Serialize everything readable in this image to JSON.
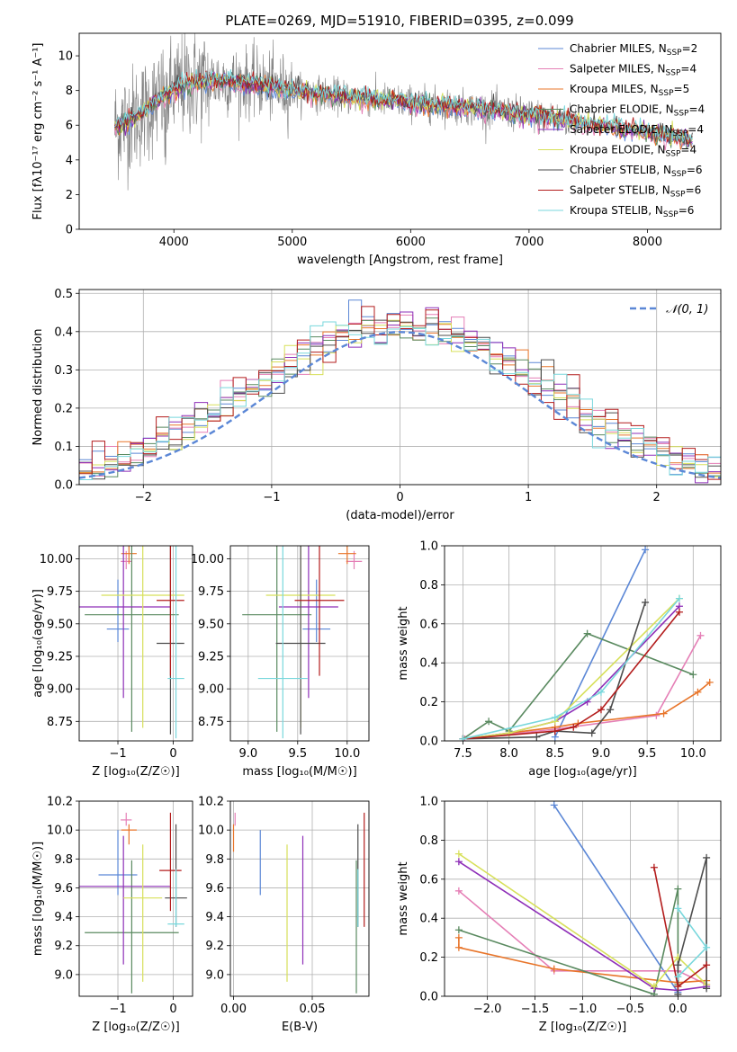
{
  "figure": {
    "title": "PLATE=0269, MJD=51910, FIBERID=0395, z=0.099"
  },
  "colors": {
    "Chabrier MILES": "#5b87d6",
    "Salpeter MILES": "#e57fb6",
    "Kroupa MILES": "#e8752a",
    "Chabrier ELODIE": "#5a8a60",
    "Salpeter ELODIE": "#8e2fb8",
    "Kroupa ELODIE": "#d7e05a",
    "Chabrier STELIB": "#4d4d4d",
    "Salpeter STELIB": "#b31c1c",
    "Kroupa STELIB": "#78d7dc"
  },
  "chart_data": [
    {
      "id": "spectrum",
      "type": "line",
      "xlabel": "wavelength [Angstrom, rest frame]",
      "ylabel": "Flux [fλ10⁻¹⁷ erg cm⁻² s⁻¹ A⁻¹]",
      "xlim": [
        3200,
        8620
      ],
      "ylim": [
        0,
        11.3
      ],
      "xticks": [
        4000,
        5000,
        6000,
        7000,
        8000
      ],
      "yticks": [
        0,
        2,
        4,
        6,
        8,
        10
      ],
      "grid": false,
      "legend_position": "top-right",
      "data_color": "#808080",
      "data_x_range": [
        3500,
        7420
      ],
      "model_x_range": [
        3500,
        8380
      ],
      "continuum_points": [
        [
          3500,
          5.9
        ],
        [
          3700,
          6.6
        ],
        [
          3900,
          7.6
        ],
        [
          4100,
          8.4
        ],
        [
          4400,
          8.6
        ],
        [
          4700,
          8.4
        ],
        [
          5000,
          8.0
        ],
        [
          5500,
          7.6
        ],
        [
          6000,
          7.3
        ],
        [
          6500,
          7.0
        ],
        [
          7000,
          6.6
        ],
        [
          7500,
          6.1
        ],
        [
          8000,
          5.6
        ],
        [
          8380,
          5.1
        ]
      ],
      "legend": [
        {
          "name": "Chabrier MILES",
          "label": "Chabrier MILES, N",
          "sub": "SSP",
          "value": "=2"
        },
        {
          "name": "Salpeter MILES",
          "label": "Salpeter MILES, N",
          "sub": "SSP",
          "value": "=4"
        },
        {
          "name": "Kroupa MILES",
          "label": "Kroupa MILES, N",
          "sub": "SSP",
          "value": "=5"
        },
        {
          "name": "Chabrier ELODIE",
          "label": "Chabrier ELODIE, N",
          "sub": "SSP",
          "value": "=4"
        },
        {
          "name": "Salpeter ELODIE",
          "label": "Salpeter ELODIE, N",
          "sub": "SSP",
          "value": "=4"
        },
        {
          "name": "Kroupa ELODIE",
          "label": "Kroupa ELODIE, N",
          "sub": "SSP",
          "value": "=4"
        },
        {
          "name": "Chabrier STELIB",
          "label": "Chabrier STELIB, N",
          "sub": "SSP",
          "value": "=6"
        },
        {
          "name": "Salpeter STELIB",
          "label": "Salpeter STELIB, N",
          "sub": "SSP",
          "value": "=6"
        },
        {
          "name": "Kroupa STELIB",
          "label": "Kroupa STELIB, N",
          "sub": "SSP",
          "value": "=6"
        }
      ]
    },
    {
      "id": "residuals",
      "type": "line",
      "xlabel": "(data-model)/error",
      "ylabel": "Normed distribution",
      "xlim": [
        -2.5,
        2.5
      ],
      "ylim": [
        0,
        0.51
      ],
      "xticks": [
        -2,
        -1,
        0,
        1,
        2
      ],
      "yticks": [
        0.0,
        0.1,
        0.2,
        0.3,
        0.4,
        0.5
      ],
      "grid": true,
      "legend_position": "top-right",
      "bin_width": 0.1,
      "gaussian": {
        "name": "𝒩(0, 1)",
        "color": "#5b87d6",
        "mean": 0,
        "sigma": 1
      }
    },
    {
      "id": "age-vs-Z",
      "type": "scatter",
      "xlabel": "Z [log₁₀(Z/Z☉)]",
      "ylabel": "age  [log₁₀(age/yr)]",
      "xlim": [
        -1.7,
        0.35
      ],
      "ylim": [
        8.6,
        10.1
      ],
      "xticks": [
        -1,
        0
      ],
      "yticks": [
        8.75,
        9.0,
        9.25,
        9.5,
        9.75,
        10.0
      ],
      "grid": true,
      "points": [
        {
          "model": "Chabrier MILES",
          "x": -1.0,
          "xerr": 0.2,
          "y": 9.46,
          "yerr": [
            0.1,
            0.38
          ]
        },
        {
          "model": "Salpeter MILES",
          "x": -0.85,
          "xerr": 0.1,
          "y": 9.98,
          "yerr": [
            0.06,
            0.08
          ]
        },
        {
          "model": "Kroupa MILES",
          "x": -0.8,
          "xerr": 0.14,
          "y": 10.04,
          "yerr": [
            0.08,
            0.06
          ]
        },
        {
          "model": "Chabrier ELODIE",
          "x": -0.75,
          "xerr": 0.85,
          "y": 9.57,
          "yerr": [
            0.9,
            0.55
          ]
        },
        {
          "model": "Salpeter ELODIE",
          "x": -0.9,
          "xerr": 0.85,
          "y": 9.63,
          "yerr": [
            0.7,
            0.48
          ]
        },
        {
          "model": "Kroupa ELODIE",
          "x": -0.55,
          "xerr": 0.75,
          "y": 9.72,
          "yerr": [
            1.02,
            0.38
          ]
        },
        {
          "model": "Chabrier STELIB",
          "x": -0.05,
          "xerr": 0.25,
          "y": 9.35,
          "yerr": [
            0.7,
            0.76
          ]
        },
        {
          "model": "Salpeter STELIB",
          "x": -0.05,
          "xerr": 0.25,
          "y": 9.68,
          "yerr": [
            0.58,
            0.43
          ]
        },
        {
          "model": "Kroupa STELIB",
          "x": 0.05,
          "xerr": 0.15,
          "y": 9.08,
          "yerr": [
            0.46,
            1.02
          ]
        }
      ]
    },
    {
      "id": "age-vs-mass",
      "type": "scatter",
      "xlabel": "mass [log₁₀(M/M☉)]",
      "ylabel": "",
      "xlim": [
        8.82,
        10.22
      ],
      "ylim": [
        8.6,
        10.1
      ],
      "xticks": [
        9.0,
        9.5,
        10.0
      ],
      "yticks": [
        8.75,
        9.0,
        9.25,
        9.5,
        9.75,
        10.0
      ],
      "grid": true,
      "points": [
        {
          "model": "Chabrier MILES",
          "x": 9.69,
          "xerr": 0.14,
          "y": 9.46,
          "yerr": [
            0.1,
            0.38
          ]
        },
        {
          "model": "Salpeter MILES",
          "x": 10.07,
          "xerr": 0.08,
          "y": 9.98,
          "yerr": [
            0.06,
            0.08
          ]
        },
        {
          "model": "Kroupa MILES",
          "x": 10.0,
          "xerr": 0.09,
          "y": 10.04,
          "yerr": [
            0.08,
            0.06
          ]
        },
        {
          "model": "Chabrier ELODIE",
          "x": 9.29,
          "xerr": 0.35,
          "y": 9.57,
          "yerr": [
            0.9,
            0.55
          ]
        },
        {
          "model": "Salpeter ELODIE",
          "x": 9.61,
          "xerr": 0.3,
          "y": 9.63,
          "yerr": [
            0.7,
            0.48
          ]
        },
        {
          "model": "Kroupa ELODIE",
          "x": 9.53,
          "xerr": 0.35,
          "y": 9.72,
          "yerr": [
            1.02,
            0.38
          ]
        },
        {
          "model": "Chabrier STELIB",
          "x": 9.53,
          "xerr": 0.25,
          "y": 9.35,
          "yerr": [
            0.7,
            0.76
          ]
        },
        {
          "model": "Salpeter STELIB",
          "x": 9.72,
          "xerr": 0.25,
          "y": 9.68,
          "yerr": [
            0.58,
            0.43
          ]
        },
        {
          "model": "Kroupa STELIB",
          "x": 9.35,
          "xerr": 0.25,
          "y": 9.08,
          "yerr": [
            0.46,
            1.02
          ]
        }
      ]
    },
    {
      "id": "mass-vs-Z",
      "type": "scatter",
      "xlabel": "Z [log₁₀(Z/Z☉)]",
      "ylabel": "mass [log₁₀(M/M☉)]",
      "xlim": [
        -1.7,
        0.35
      ],
      "ylim": [
        8.85,
        10.2
      ],
      "xticks": [
        -1,
        0
      ],
      "yticks": [
        9.0,
        9.2,
        9.4,
        9.6,
        9.8,
        10.0,
        10.2
      ],
      "grid": true,
      "points": [
        {
          "model": "Chabrier MILES",
          "x": -1.0,
          "xerr": 0.35,
          "y": 9.69,
          "yerr": [
            0.14,
            0.31
          ]
        },
        {
          "model": "Salpeter MILES",
          "x": -0.85,
          "xerr": 0.1,
          "y": 10.07,
          "yerr": [
            0.04,
            0.05
          ]
        },
        {
          "model": "Kroupa MILES",
          "x": -0.8,
          "xerr": 0.14,
          "y": 10.0,
          "yerr": [
            0.1,
            0.04
          ]
        },
        {
          "model": "Chabrier ELODIE",
          "x": -0.75,
          "xerr": 0.85,
          "y": 9.29,
          "yerr": [
            0.42,
            0.5
          ]
        },
        {
          "model": "Salpeter ELODIE",
          "x": -0.9,
          "xerr": 0.85,
          "y": 9.61,
          "yerr": [
            0.54,
            0.35
          ]
        },
        {
          "model": "Kroupa ELODIE",
          "x": -0.55,
          "xerr": 0.35,
          "y": 9.53,
          "yerr": [
            0.58,
            0.37
          ]
        },
        {
          "model": "Chabrier STELIB",
          "x": 0.05,
          "xerr": 0.2,
          "y": 9.53,
          "yerr": [
            0.2,
            0.51
          ]
        },
        {
          "model": "Salpeter STELIB",
          "x": -0.05,
          "xerr": 0.2,
          "y": 9.72,
          "yerr": [
            0.28,
            0.4
          ]
        },
        {
          "model": "Kroupa STELIB",
          "x": 0.05,
          "xerr": 0.15,
          "y": 9.35,
          "yerr": [
            0.02,
            0.38
          ]
        }
      ]
    },
    {
      "id": "mass-vs-EBV",
      "type": "scatter",
      "xlabel": "E(B-V)",
      "ylabel": "",
      "xlim": [
        -0.002,
        0.086
      ],
      "ylim": [
        8.85,
        10.2
      ],
      "xticks": [
        0.0,
        0.05
      ],
      "yticks": [
        9.0,
        9.2,
        9.4,
        9.6,
        9.8,
        10.0,
        10.2
      ],
      "grid": true,
      "points": [
        {
          "model": "Chabrier MILES",
          "x": 0.017,
          "y": 9.69,
          "yerr": [
            0.14,
            0.31
          ]
        },
        {
          "model": "Salpeter MILES",
          "x": 0.001,
          "y": 10.07,
          "yerr": [
            0.04,
            0.05
          ]
        },
        {
          "model": "Kroupa MILES",
          "x": 0.0,
          "y": 10.0,
          "yerr": [
            0.15,
            0.04
          ]
        },
        {
          "model": "Chabrier ELODIE",
          "x": 0.078,
          "y": 9.29,
          "yerr": [
            0.42,
            0.5
          ]
        },
        {
          "model": "Salpeter ELODIE",
          "x": 0.044,
          "y": 9.61,
          "yerr": [
            0.54,
            0.35
          ]
        },
        {
          "model": "Kroupa ELODIE",
          "x": 0.034,
          "y": 9.53,
          "yerr": [
            0.58,
            0.37
          ]
        },
        {
          "model": "Chabrier STELIB",
          "x": 0.079,
          "y": 9.53,
          "yerr": [
            0.2,
            0.51
          ]
        },
        {
          "model": "Salpeter STELIB",
          "x": 0.083,
          "y": 9.72,
          "yerr": [
            0.39,
            0.4
          ]
        },
        {
          "model": "Kroupa STELIB",
          "x": 0.079,
          "y": 9.35,
          "yerr": [
            0.02,
            0.38
          ]
        }
      ]
    },
    {
      "id": "mass-weight-vs-age",
      "type": "line",
      "xlabel": "age  [log₁₀(age/yr)]",
      "ylabel": "mass weight",
      "xlim": [
        7.3,
        10.3
      ],
      "ylim": [
        0.0,
        1.0
      ],
      "xticks": [
        7.5,
        8.0,
        8.5,
        9.0,
        9.5,
        10.0
      ],
      "yticks": [
        0.0,
        0.2,
        0.4,
        0.6,
        0.8,
        1.0
      ],
      "grid": true,
      "marker": "+",
      "series": [
        {
          "name": "Chabrier MILES",
          "points": [
            [
              8.5,
              0.02
            ],
            [
              9.48,
              0.98
            ]
          ]
        },
        {
          "name": "Salpeter MILES",
          "points": [
            [
              7.52,
              0.01
            ],
            [
              8.5,
              0.06
            ],
            [
              9.6,
              0.13
            ],
            [
              10.08,
              0.54
            ]
          ]
        },
        {
          "name": "Kroupa MILES",
          "points": [
            [
              7.5,
              0.01
            ],
            [
              8.5,
              0.07
            ],
            [
              8.75,
              0.09
            ],
            [
              9.68,
              0.14
            ],
            [
              10.05,
              0.25
            ],
            [
              10.18,
              0.3
            ]
          ]
        },
        {
          "name": "Chabrier ELODIE",
          "points": [
            [
              7.5,
              0.01
            ],
            [
              7.78,
              0.1
            ],
            [
              8.0,
              0.05
            ],
            [
              8.85,
              0.55
            ],
            [
              10.0,
              0.34
            ]
          ]
        },
        {
          "name": "Salpeter ELODIE",
          "points": [
            [
              7.5,
              0.01
            ],
            [
              8.0,
              0.04
            ],
            [
              8.5,
              0.1
            ],
            [
              8.85,
              0.2
            ],
            [
              9.85,
              0.69
            ]
          ]
        },
        {
          "name": "Kroupa ELODIE",
          "points": [
            [
              7.5,
              0.01
            ],
            [
              8.0,
              0.04
            ],
            [
              8.5,
              0.1
            ],
            [
              9.85,
              0.73
            ]
          ]
        },
        {
          "name": "Chabrier STELIB",
          "points": [
            [
              7.5,
              0.01
            ],
            [
              8.3,
              0.02
            ],
            [
              8.5,
              0.05
            ],
            [
              8.9,
              0.04
            ],
            [
              9.1,
              0.16
            ],
            [
              9.48,
              0.71
            ]
          ]
        },
        {
          "name": "Salpeter STELIB",
          "points": [
            [
              7.5,
              0.01
            ],
            [
              8.5,
              0.05
            ],
            [
              8.7,
              0.07
            ],
            [
              9.0,
              0.16
            ],
            [
              9.85,
              0.66
            ]
          ]
        },
        {
          "name": "Kroupa STELIB",
          "points": [
            [
              7.5,
              0.01
            ],
            [
              8.5,
              0.12
            ],
            [
              9.0,
              0.25
            ],
            [
              9.85,
              0.73
            ]
          ]
        }
      ]
    },
    {
      "id": "mass-weight-vs-Z",
      "type": "line",
      "xlabel": "Z [log₁₀(Z/Z☉)]",
      "ylabel": "mass weight",
      "xlim": [
        -2.45,
        0.45
      ],
      "ylim": [
        0.0,
        1.0
      ],
      "xticks": [
        -2.0,
        -1.5,
        -1.0,
        -0.5,
        0.0
      ],
      "yticks": [
        0.0,
        0.2,
        0.4,
        0.6,
        0.8,
        1.0
      ],
      "grid": true,
      "marker": "+",
      "series": [
        {
          "name": "Chabrier MILES",
          "points": [
            [
              -1.3,
              0.98
            ],
            [
              0.0,
              0.02
            ]
          ]
        },
        {
          "name": "Salpeter MILES",
          "points": [
            [
              -2.3,
              0.54
            ],
            [
              -1.3,
              0.13
            ],
            [
              0.0,
              0.13
            ],
            [
              0.3,
              0.06
            ]
          ]
        },
        {
          "name": "Kroupa MILES",
          "points": [
            [
              -2.3,
              0.3
            ],
            [
              -2.3,
              0.25
            ],
            [
              -1.3,
              0.14
            ],
            [
              0.0,
              0.07
            ],
            [
              0.3,
              0.08
            ]
          ]
        },
        {
          "name": "Chabrier ELODIE",
          "points": [
            [
              -2.3,
              0.34
            ],
            [
              -0.25,
              0.01
            ],
            [
              0.0,
              0.55
            ],
            [
              0.0,
              0.06
            ]
          ]
        },
        {
          "name": "Salpeter ELODIE",
          "points": [
            [
              -2.3,
              0.69
            ],
            [
              -0.25,
              0.04
            ],
            [
              0.0,
              0.03
            ],
            [
              0.3,
              0.05
            ]
          ]
        },
        {
          "name": "Kroupa ELODIE",
          "points": [
            [
              -2.3,
              0.73
            ],
            [
              -0.25,
              0.05
            ],
            [
              0.0,
              0.2
            ],
            [
              0.3,
              0.06
            ]
          ]
        },
        {
          "name": "Chabrier STELIB",
          "points": [
            [
              0.0,
              0.01
            ],
            [
              0.0,
              0.16
            ],
            [
              0.3,
              0.71
            ],
            [
              0.3,
              0.04
            ]
          ]
        },
        {
          "name": "Salpeter STELIB",
          "points": [
            [
              -0.25,
              0.66
            ],
            [
              0.0,
              0.05
            ],
            [
              0.3,
              0.16
            ]
          ]
        },
        {
          "name": "Kroupa STELIB",
          "points": [
            [
              0.0,
              0.45
            ],
            [
              0.3,
              0.25
            ],
            [
              0.0,
              0.1
            ]
          ]
        }
      ]
    }
  ]
}
